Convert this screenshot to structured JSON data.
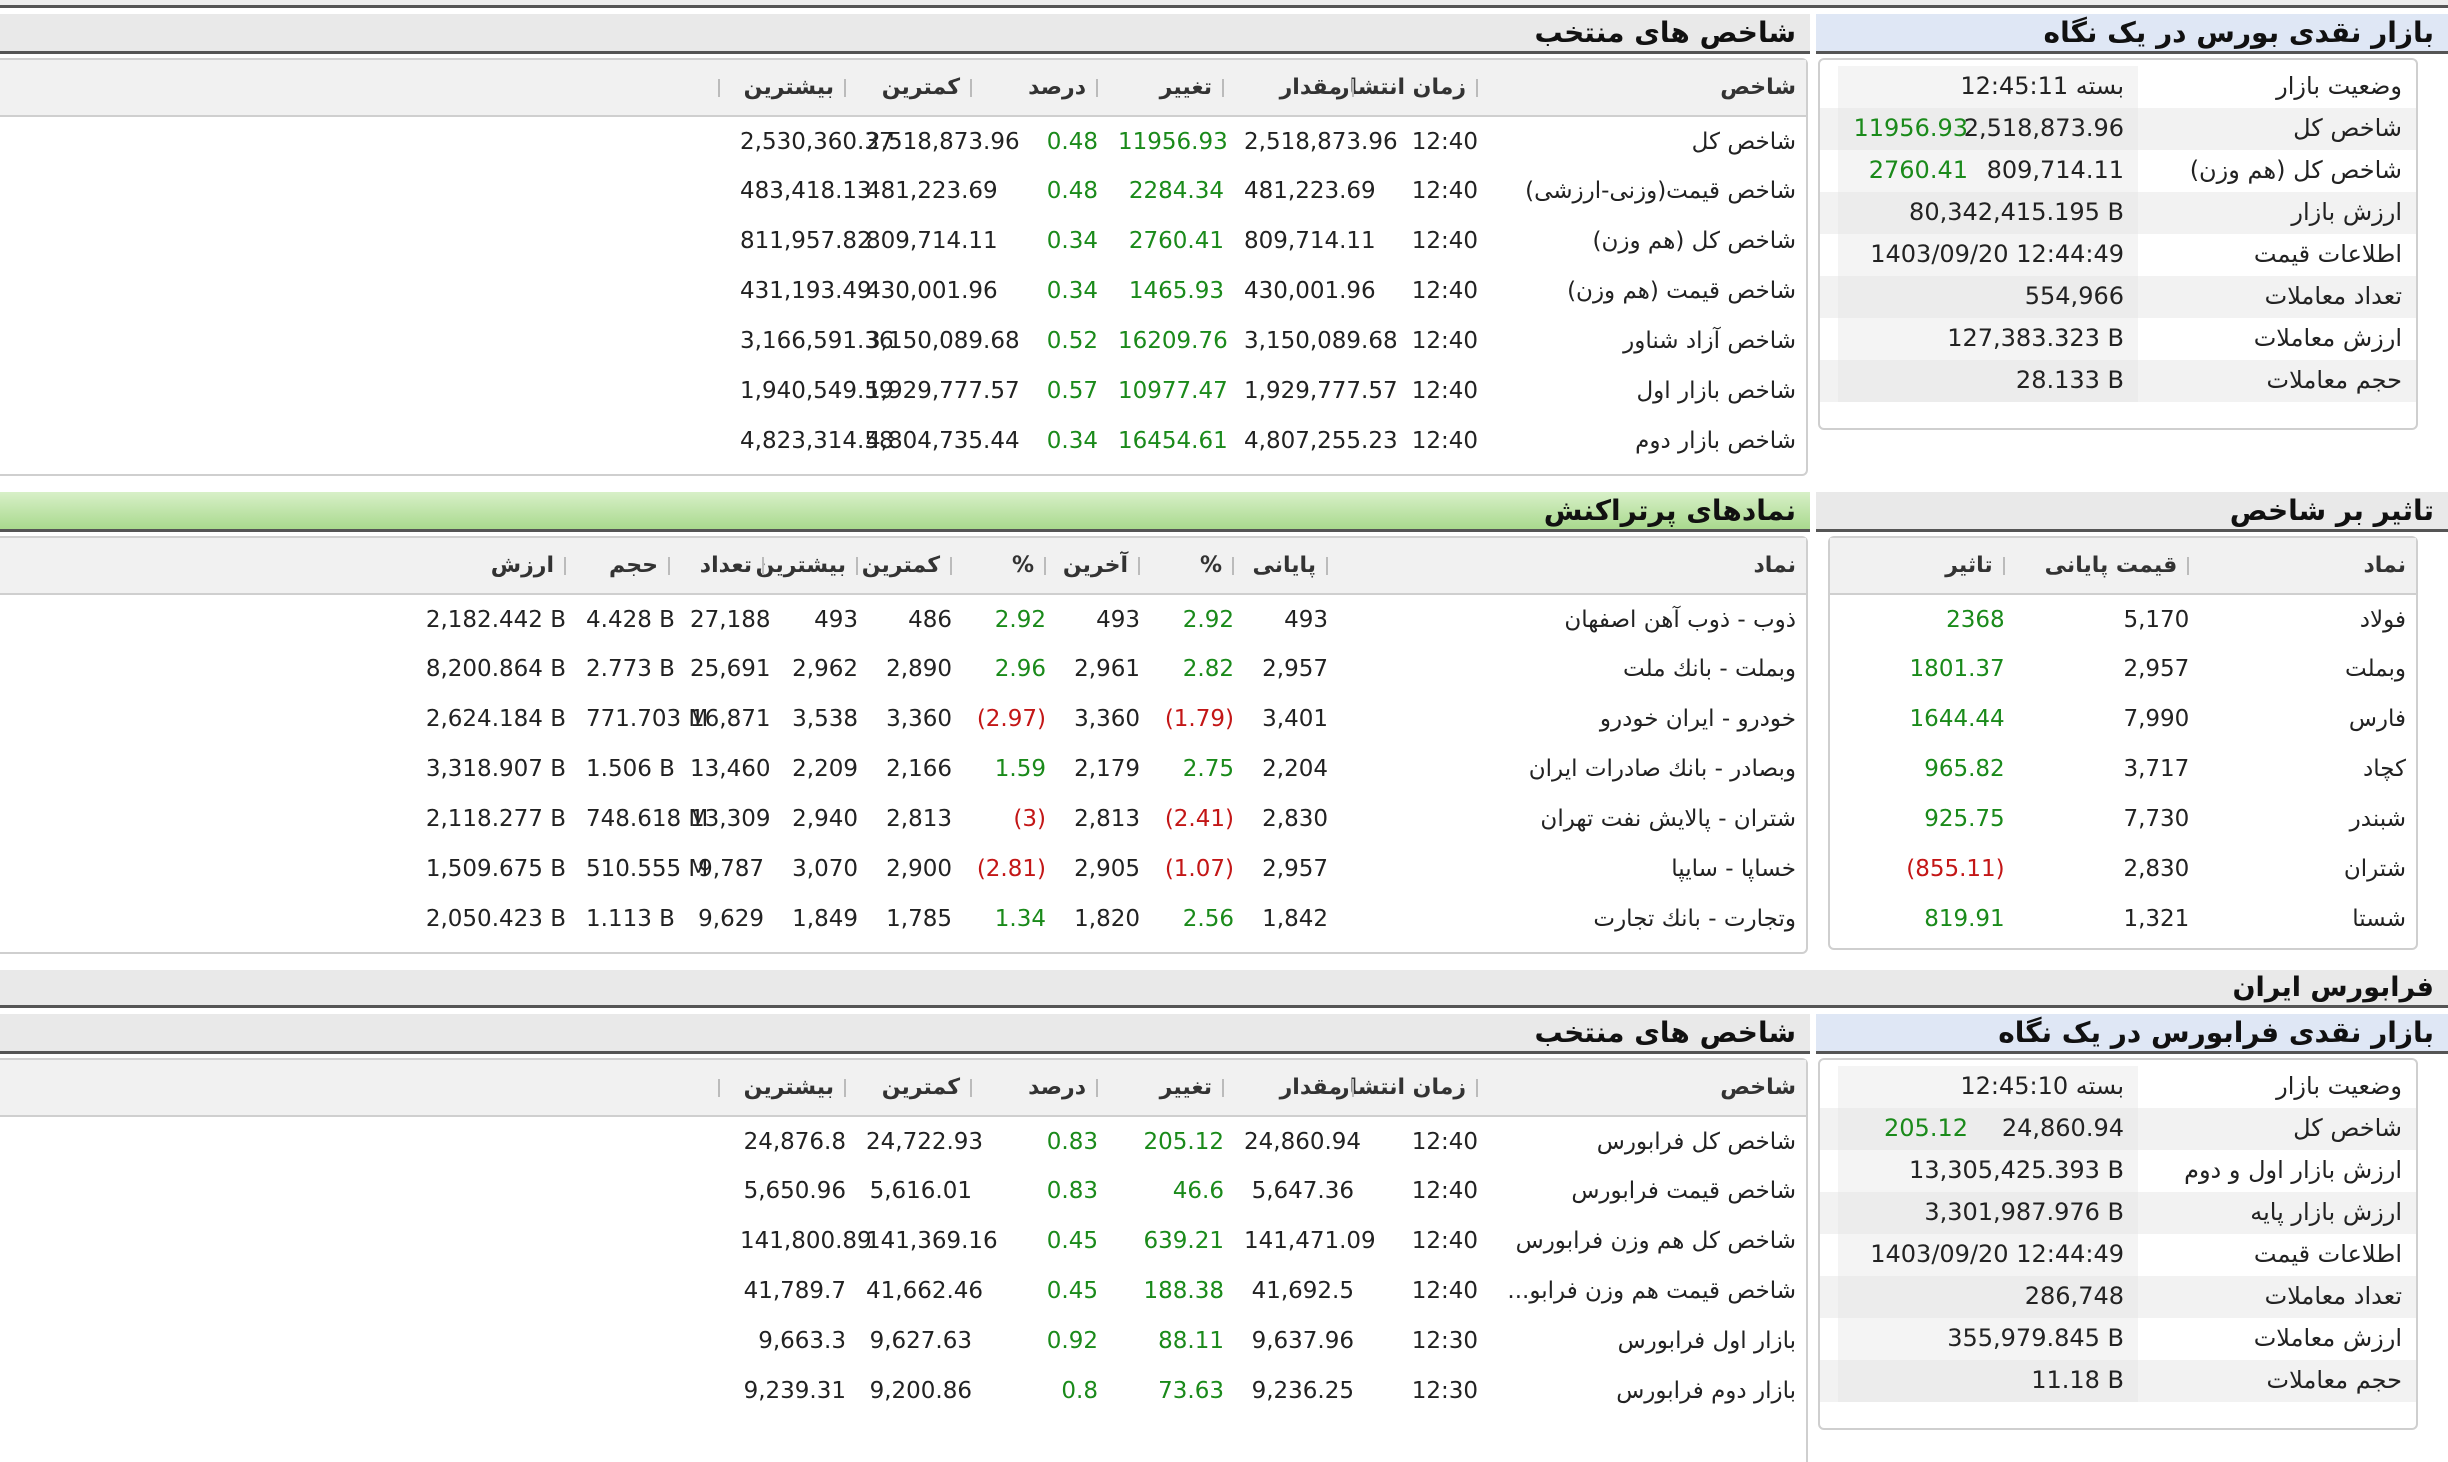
{
  "colors": {
    "positive": "#1a8a1a",
    "negative": "#c31616",
    "header_bar": "#e9e9e9",
    "green_bar": "#a9d98e"
  },
  "bourse": {
    "glance": {
      "title": "بازار نقدی بورس در یک نگاه",
      "rows": [
        {
          "label": "وضعیت بازار",
          "value": "بسته 12:45:11",
          "extra": ""
        },
        {
          "label": "شاخص کل",
          "value": "2,518,873.96",
          "extra": "11956.93"
        },
        {
          "label": "شاخص کل (هم وزن)",
          "value": "809,714.11",
          "extra": "2760.41"
        },
        {
          "label": "ارزش بازار",
          "value": "80,342,415.195 B",
          "extra": ""
        },
        {
          "label": "اطلاعات قیمت",
          "value": "1403/09/20 12:44:49",
          "extra": ""
        },
        {
          "label": "تعداد معاملات",
          "value": "554,966",
          "extra": ""
        },
        {
          "label": "ارزش معاملات",
          "value": "127,383.323 B",
          "extra": ""
        },
        {
          "label": "حجم معاملات",
          "value": "28.133 B",
          "extra": ""
        }
      ]
    },
    "indices": {
      "title": "شاخص های منتخب",
      "headers": [
        "شاخص",
        "زمان انتشار",
        "مقدار",
        "تغییر",
        "درصد",
        "کمترین",
        "بیشترین"
      ],
      "rows": [
        {
          "name": "شاخص کل",
          "time": "12:40",
          "value": "2,518,873.96",
          "change": "11956.93",
          "pct": "0.48",
          "min": "2,518,873.96",
          "max": "2,530,360.37"
        },
        {
          "name": "شاخص قیمت(وزنی-ارزشی)",
          "time": "12:40",
          "value": "481,223.69",
          "change": "2284.34",
          "pct": "0.48",
          "min": "481,223.69",
          "max": "483,418.13"
        },
        {
          "name": "شاخص کل (هم وزن)",
          "time": "12:40",
          "value": "809,714.11",
          "change": "2760.41",
          "pct": "0.34",
          "min": "809,714.11",
          "max": "811,957.82"
        },
        {
          "name": "شاخص قیمت (هم وزن)",
          "time": "12:40",
          "value": "430,001.96",
          "change": "1465.93",
          "pct": "0.34",
          "min": "430,001.96",
          "max": "431,193.49"
        },
        {
          "name": "شاخص آزاد شناور",
          "time": "12:40",
          "value": "3,150,089.68",
          "change": "16209.76",
          "pct": "0.52",
          "min": "3,150,089.68",
          "max": "3,166,591.36"
        },
        {
          "name": "شاخص بازار اول",
          "time": "12:40",
          "value": "1,929,777.57",
          "change": "10977.47",
          "pct": "0.57",
          "min": "1,929,777.57",
          "max": "1,940,549.59"
        },
        {
          "name": "شاخص بازار دوم",
          "time": "12:40",
          "value": "4,807,255.23",
          "change": "16454.61",
          "pct": "0.34",
          "min": "4,804,735.44",
          "max": "4,823,314.58"
        }
      ]
    },
    "impact": {
      "title": "تاثیر بر شاخص",
      "headers": [
        "نماد",
        "قیمت پایانی",
        "تاثیر"
      ],
      "rows": [
        {
          "symbol": "فولاد",
          "price": "5,170",
          "impact": "2368",
          "neg": false
        },
        {
          "symbol": "وبملت",
          "price": "2,957",
          "impact": "1801.37",
          "neg": false
        },
        {
          "symbol": "فارس",
          "price": "7,990",
          "impact": "1644.44",
          "neg": false
        },
        {
          "symbol": "کچاد",
          "price": "3,717",
          "impact": "965.82",
          "neg": false
        },
        {
          "symbol": "شبندر",
          "price": "7,730",
          "impact": "925.75",
          "neg": false
        },
        {
          "symbol": "شتران",
          "price": "2,830",
          "impact": "(855.11)",
          "neg": true
        },
        {
          "symbol": "شستا",
          "price": "1,321",
          "impact": "819.91",
          "neg": false
        }
      ]
    },
    "active": {
      "title": "نمادهای پرتراکنش",
      "headers": [
        "نماد",
        "پایانی",
        "%",
        "آخرین",
        "%",
        "کمترین",
        "بیشترین",
        "تعداد",
        "حجم",
        "ارزش"
      ],
      "rows": [
        {
          "symbol": "ذوب - ذوب آهن اصفهان",
          "close": "493",
          "close_pct": "2.92",
          "close_neg": false,
          "last": "493",
          "last_pct": "2.92",
          "last_neg": false,
          "min": "486",
          "max": "493",
          "count": "27,188",
          "volume": "4.428 B",
          "value": "2,182.442 B"
        },
        {
          "symbol": "وبملت - بانك ملت",
          "close": "2,957",
          "close_pct": "2.82",
          "close_neg": false,
          "last": "2,961",
          "last_pct": "2.96",
          "last_neg": false,
          "min": "2,890",
          "max": "2,962",
          "count": "25,691",
          "volume": "2.773 B",
          "value": "8,200.864 B"
        },
        {
          "symbol": "خودرو - ايران خودرو",
          "close": "3,401",
          "close_pct": "(1.79)",
          "close_neg": true,
          "last": "3,360",
          "last_pct": "(2.97)",
          "last_neg": true,
          "min": "3,360",
          "max": "3,538",
          "count": "16,871",
          "volume": "771.703 M",
          "value": "2,624.184 B"
        },
        {
          "symbol": "وبصادر - بانك صادرات ايران",
          "close": "2,204",
          "close_pct": "2.75",
          "close_neg": false,
          "last": "2,179",
          "last_pct": "1.59",
          "last_neg": false,
          "min": "2,166",
          "max": "2,209",
          "count": "13,460",
          "volume": "1.506 B",
          "value": "3,318.907 B"
        },
        {
          "symbol": "شتران - پالايش نفت تهران",
          "close": "2,830",
          "close_pct": "(2.41)",
          "close_neg": true,
          "last": "2,813",
          "last_pct": "(3)",
          "last_neg": true,
          "min": "2,813",
          "max": "2,940",
          "count": "13,309",
          "volume": "748.618 M",
          "value": "2,118.277 B"
        },
        {
          "symbol": "خساپا - سايپا",
          "close": "2,957",
          "close_pct": "(1.07)",
          "close_neg": true,
          "last": "2,905",
          "last_pct": "(2.81)",
          "last_neg": true,
          "min": "2,900",
          "max": "3,070",
          "count": "9,787",
          "volume": "510.555 M",
          "value": "1,509.675 B"
        },
        {
          "symbol": "وتجارت - بانك تجارت",
          "close": "1,842",
          "close_pct": "2.56",
          "close_neg": false,
          "last": "1,820",
          "last_pct": "1.34",
          "last_neg": false,
          "min": "1,785",
          "max": "1,849",
          "count": "9,629",
          "volume": "1.113 B",
          "value": "2,050.423 B"
        }
      ]
    }
  },
  "farabourse": {
    "section_title": "فرابورس ایران",
    "glance": {
      "title": "بازار نقدی فرابورس در یک نگاه",
      "rows": [
        {
          "label": "وضعیت بازار",
          "value": "بسته 12:45:10",
          "extra": ""
        },
        {
          "label": "شاخص کل",
          "value": "24,860.94",
          "extra": "205.12"
        },
        {
          "label": "ارزش بازار اول و دوم",
          "value": "13,305,425.393 B",
          "extra": ""
        },
        {
          "label": "ارزش بازار پایه",
          "value": "3,301,987.976 B",
          "extra": ""
        },
        {
          "label": "اطلاعات قیمت",
          "value": "1403/09/20 12:44:49",
          "extra": ""
        },
        {
          "label": "تعداد معاملات",
          "value": "286,748",
          "extra": ""
        },
        {
          "label": "ارزش معاملات",
          "value": "355,979.845 B",
          "extra": ""
        },
        {
          "label": "حجم معاملات",
          "value": "11.18 B",
          "extra": ""
        }
      ]
    },
    "indices": {
      "title": "شاخص های منتخب",
      "headers": [
        "شاخص",
        "زمان انتشار",
        "مقدار",
        "تغییر",
        "درصد",
        "کمترین",
        "بیشترین"
      ],
      "rows": [
        {
          "name": "شاخص کل فرابورس",
          "time": "12:40",
          "value": "24,860.94",
          "change": "205.12",
          "pct": "0.83",
          "min": "24,722.93",
          "max": "24,876.8"
        },
        {
          "name": "شاخص قیمت فرابورس",
          "time": "12:40",
          "value": "5,647.36",
          "change": "46.6",
          "pct": "0.83",
          "min": "5,616.01",
          "max": "5,650.96"
        },
        {
          "name": "شاخص کل هم وزن فرابورس",
          "time": "12:40",
          "value": "141,471.09",
          "change": "639.21",
          "pct": "0.45",
          "min": "141,369.16",
          "max": "141,800.89"
        },
        {
          "name": "شاخص قیمت هم وزن فرابو...",
          "time": "12:40",
          "value": "41,692.5",
          "change": "188.38",
          "pct": "0.45",
          "min": "41,662.46",
          "max": "41,789.7"
        },
        {
          "name": "بازار اول فرابورس",
          "time": "12:30",
          "value": "9,637.96",
          "change": "88.11",
          "pct": "0.92",
          "min": "9,627.63",
          "max": "9,663.3"
        },
        {
          "name": "بازار دوم فرابورس",
          "time": "12:30",
          "value": "9,236.25",
          "change": "73.63",
          "pct": "0.8",
          "min": "9,200.86",
          "max": "9,239.31"
        }
      ]
    }
  }
}
